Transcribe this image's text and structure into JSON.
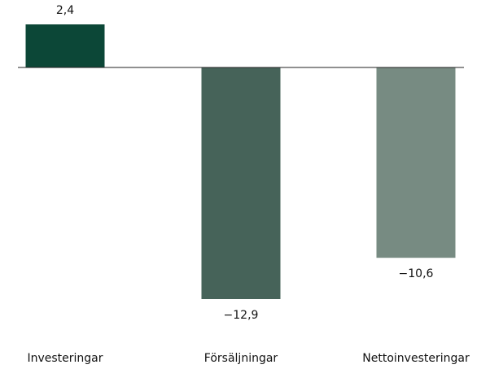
{
  "chart_data": {
    "type": "bar",
    "categories": [
      "Investeringar",
      "Försäljningar",
      "Nettoinvesteringar"
    ],
    "values": [
      2.4,
      -12.9,
      -10.6
    ],
    "value_labels": [
      "2,4",
      "−12,9",
      "−10,6"
    ],
    "colors": [
      "#0c4737",
      "#466359",
      "#778b82"
    ],
    "grid": false
  }
}
